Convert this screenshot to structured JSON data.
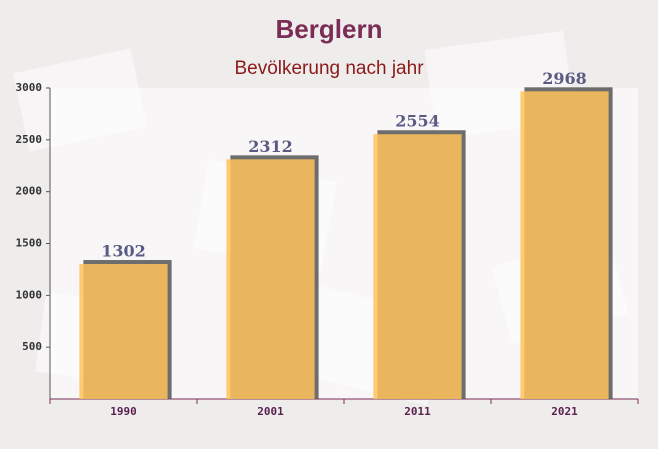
{
  "chart_data": {
    "type": "bar",
    "title": "Berglern",
    "subtitle": "Bevölkerung nach jahr",
    "categories": [
      "1990",
      "2001",
      "2011",
      "2021"
    ],
    "values": [
      1302,
      2312,
      2554,
      2968
    ],
    "color": "#ffc35a",
    "ylim": [
      0,
      3000
    ],
    "yticks": [
      500,
      1000,
      1500,
      2000,
      2500,
      3000
    ]
  }
}
